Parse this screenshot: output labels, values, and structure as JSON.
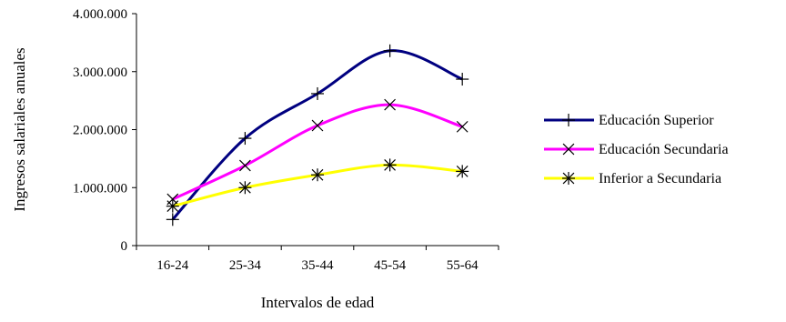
{
  "chart_data": {
    "type": "line",
    "title": "",
    "xlabel": "Intervalos de edad",
    "ylabel": "Ingresos salariales anuales",
    "categories": [
      "16-24",
      "25-34",
      "35-44",
      "45-54",
      "55-64"
    ],
    "ylim": [
      0,
      4000000
    ],
    "yticks": [
      {
        "value": 0,
        "label": "0"
      },
      {
        "value": 1000000,
        "label": "1.000.000"
      },
      {
        "value": 2000000,
        "label": "2.000.000"
      },
      {
        "value": 3000000,
        "label": "3.000.000"
      },
      {
        "value": 4000000,
        "label": "4.000.000"
      }
    ],
    "grid": false,
    "legend_position": "right",
    "series": [
      {
        "name": "Educación Superior",
        "color": "#000080",
        "marker": "plus",
        "values": [
          450000,
          1850000,
          2620000,
          3360000,
          2870000
        ]
      },
      {
        "name": "Educación Secundaria",
        "color": "#ff00ff",
        "marker": "x",
        "values": [
          800000,
          1380000,
          2070000,
          2430000,
          2050000
        ]
      },
      {
        "name": "Inferior a Secundaria",
        "color": "#ffff00",
        "marker": "asterisk",
        "values": [
          680000,
          1000000,
          1220000,
          1390000,
          1280000
        ]
      }
    ]
  }
}
